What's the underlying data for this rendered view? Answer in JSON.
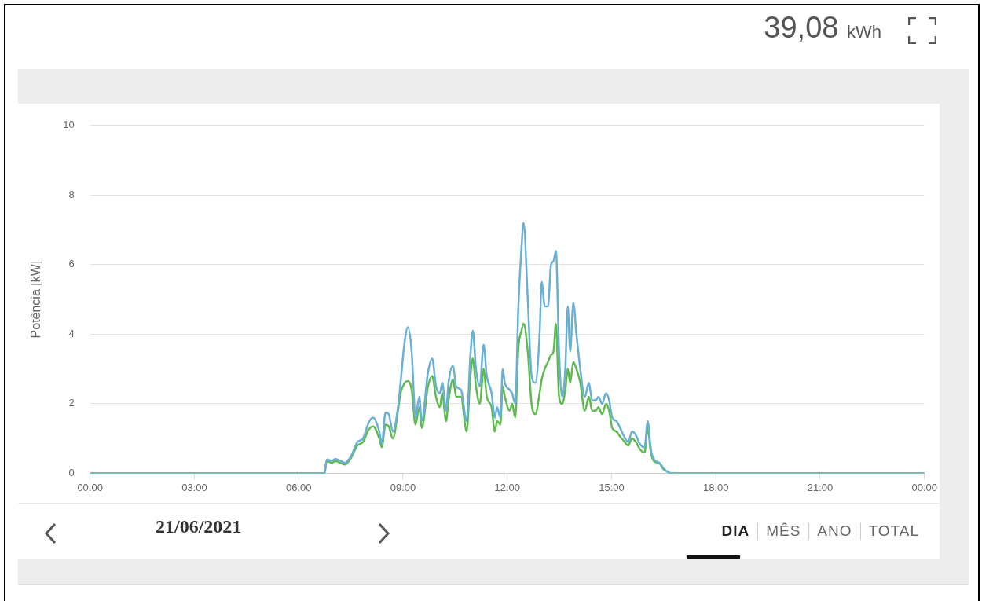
{
  "chart_data": {
    "type": "line",
    "ylabel": "Potência [kW]",
    "annotations": [
      "39,08 kWh",
      "21/06/2021",
      "DIA",
      "MÊS",
      "ANO",
      "TOTAL"
    ],
    "x": [
      0,
      6.74,
      6.81,
      6.95,
      7.06,
      7.2,
      7.33,
      7.51,
      7.69,
      7.85,
      8.01,
      8.14,
      8.32,
      8.39,
      8.5,
      8.59,
      8.71,
      8.87,
      8.93,
      9.05,
      9.14,
      9.25,
      9.36,
      9.47,
      9.54,
      9.72,
      9.84,
      9.95,
      10.06,
      10.13,
      10.24,
      10.31,
      10.44,
      10.53,
      10.67,
      10.83,
      10.94,
      11.01,
      11.1,
      11.21,
      11.32,
      11.41,
      11.55,
      11.64,
      11.71,
      11.8,
      11.87,
      11.93,
      12.07,
      12.14,
      12.23,
      12.32,
      12.41,
      12.47,
      12.59,
      12.7,
      12.81,
      12.93,
      12.99,
      13.08,
      13.17,
      13.26,
      13.33,
      13.4,
      13.49,
      13.58,
      13.67,
      13.74,
      13.81,
      13.9,
      13.99,
      14.1,
      14.23,
      14.35,
      14.44,
      14.55,
      14.62,
      14.73,
      14.84,
      14.93,
      15.02,
      15.14,
      15.25,
      15.34,
      15.48,
      15.59,
      15.7,
      15.81,
      15.95,
      16.04,
      16.13,
      16.22,
      16.38,
      16.49,
      16.6,
      16.72,
      24
    ],
    "series": [
      {
        "color": "#6aafd4",
        "values": [
          0,
          0,
          0.4,
          0.36,
          0.41,
          0.36,
          0.3,
          0.5,
          0.9,
          1.0,
          1.45,
          1.6,
          1.2,
          0.85,
          1.75,
          1.7,
          1.2,
          2.0,
          2.6,
          3.8,
          4.2,
          3.5,
          1.6,
          2.2,
          1.5,
          2.9,
          3.3,
          2.5,
          2.3,
          2.6,
          1.8,
          2.6,
          3.1,
          2.5,
          2.4,
          1.5,
          3.4,
          4.1,
          3.0,
          2.5,
          3.7,
          2.8,
          2.3,
          1.6,
          1.9,
          1.6,
          3.0,
          2.6,
          2.4,
          2.3,
          2.0,
          4.8,
          6.5,
          7.2,
          5.0,
          2.8,
          2.6,
          4.0,
          5.5,
          4.8,
          4.8,
          6.0,
          6.1,
          6.4,
          3.5,
          2.2,
          3.0,
          4.8,
          3.5,
          4.9,
          4.0,
          3.0,
          2.2,
          2.6,
          2.1,
          2.1,
          2.2,
          2.0,
          2.3,
          2.1,
          1.6,
          1.5,
          1.3,
          1.1,
          0.9,
          1.2,
          1.1,
          0.85,
          0.75,
          1.5,
          0.7,
          0.4,
          0.3,
          0.15,
          0.05,
          0,
          0
        ]
      },
      {
        "color": "#5fbb4f",
        "values": [
          0,
          0,
          0.35,
          0.3,
          0.35,
          0.3,
          0.25,
          0.45,
          0.8,
          0.9,
          1.25,
          1.35,
          1.0,
          0.75,
          1.4,
          1.35,
          1.0,
          1.9,
          2.3,
          2.6,
          2.65,
          2.4,
          1.4,
          1.9,
          1.3,
          2.5,
          2.8,
          2.2,
          1.9,
          2.3,
          1.5,
          2.1,
          2.7,
          2.2,
          2.2,
          1.2,
          2.8,
          3.3,
          2.5,
          2.0,
          3.0,
          2.2,
          1.9,
          1.2,
          1.5,
          1.4,
          2.5,
          2.2,
          1.8,
          2.0,
          1.6,
          3.6,
          4.1,
          4.3,
          3.5,
          2.0,
          1.7,
          2.3,
          2.7,
          3.0,
          3.2,
          3.4,
          3.5,
          4.3,
          2.2,
          2.0,
          2.4,
          3.0,
          2.6,
          3.2,
          3.0,
          2.6,
          1.8,
          2.2,
          1.8,
          1.8,
          1.9,
          1.7,
          2.0,
          1.8,
          1.3,
          1.2,
          1.05,
          0.95,
          0.8,
          1.0,
          0.9,
          0.7,
          0.6,
          1.3,
          0.6,
          0.35,
          0.28,
          0.12,
          0.05,
          0,
          0
        ]
      }
    ],
    "xlim": [
      0,
      24
    ],
    "xticks": [
      {
        "value": 0,
        "label": "00:00"
      },
      {
        "value": 3,
        "label": "03:00"
      },
      {
        "value": 6,
        "label": "06:00"
      },
      {
        "value": 9,
        "label": "09:00"
      },
      {
        "value": 12,
        "label": "12:00"
      },
      {
        "value": 15,
        "label": "15:00"
      },
      {
        "value": 18,
        "label": "18:00"
      },
      {
        "value": 21,
        "label": "21:00"
      },
      {
        "value": 24,
        "label": "00:00"
      }
    ],
    "ylim": [
      0,
      10
    ],
    "yticks": [
      0,
      2,
      4,
      6,
      8,
      10
    ],
    "grid": "y",
    "legend": false,
    "marker": "none",
    "line_style": "solid"
  }
}
